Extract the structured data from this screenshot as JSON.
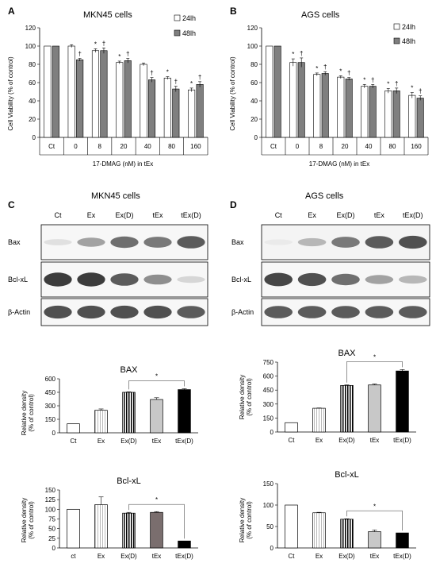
{
  "panels": {
    "A": {
      "label": "A",
      "title": "MKN45 cells"
    },
    "B": {
      "label": "B",
      "title": "AGS cells"
    },
    "C": {
      "label": "C",
      "title": "MKN45 cells"
    },
    "D": {
      "label": "D",
      "title": "AGS cells"
    }
  },
  "viability_legend": [
    "24lh",
    "48lh"
  ],
  "viability_legend_b": [
    "24lh",
    "48lh"
  ],
  "viability_ylabel": "Cell Viability (% of control)",
  "viability_xlabel": "17-DMAG (nM) in tEx",
  "blot_lanes": [
    "Ct",
    "Ex",
    "Ex(D)",
    "tEx",
    "tEx(D)"
  ],
  "blot_rows": [
    "Bax",
    "Bcl-xL",
    "β-Actin"
  ],
  "density_ylabel_1": "Relative density",
  "density_ylabel_2": "(% of control)",
  "colors": {
    "gray24": "#ffffff",
    "gray48": "#7f7f7f",
    "tEx_light": "#c8c8c8",
    "tEx_dark": "#7a6e6e",
    "black": "#000000"
  },
  "chart_data": [
    {
      "id": "A",
      "type": "bar",
      "title": "MKN45 cells",
      "categories": [
        "Ct",
        "0",
        "8",
        "20",
        "40",
        "80",
        "160"
      ],
      "xlabel": "17-DMAG (nM) in tEx",
      "ylabel": "Cell Viability (% of control)",
      "ylim": [
        0,
        120
      ],
      "yticks": [
        0,
        20,
        40,
        60,
        80,
        100,
        120
      ],
      "series": [
        {
          "name": "24lh",
          "values": [
            100,
            100,
            95,
            82,
            80,
            65,
            52
          ],
          "errors": [
            0,
            1.5,
            2,
            1.5,
            1.5,
            1.5,
            2
          ]
        },
        {
          "name": "48lh",
          "values": [
            100,
            85,
            95,
            84,
            63,
            53,
            58
          ],
          "errors": [
            0,
            1.5,
            3,
            2.5,
            2.5,
            3,
            3
          ]
        }
      ],
      "annotations": [
        {
          "category": "0",
          "series": 1,
          "text": "†"
        },
        {
          "category": "8",
          "series": 0,
          "text": "*"
        },
        {
          "category": "8",
          "series": 1,
          "text": "†"
        },
        {
          "category": "20",
          "series": 0,
          "text": "*"
        },
        {
          "category": "20",
          "series": 1,
          "text": "†"
        },
        {
          "category": "40",
          "series": 1,
          "text": "†"
        },
        {
          "category": "80",
          "series": 0,
          "text": "*"
        },
        {
          "category": "80",
          "series": 1,
          "text": "†"
        },
        {
          "category": "160",
          "series": 0,
          "text": "*"
        },
        {
          "category": "160",
          "series": 1,
          "text": "†"
        }
      ]
    },
    {
      "id": "B",
      "type": "bar",
      "title": "AGS cells",
      "categories": [
        "Ct",
        "0",
        "8",
        "20",
        "40",
        "80",
        "160"
      ],
      "xlabel": "17-DMAG (nM) in tEx",
      "ylabel": "Cell Viability (% of control)",
      "ylim": [
        0,
        120
      ],
      "yticks": [
        0,
        20,
        40,
        60,
        80,
        100,
        120
      ],
      "series": [
        {
          "name": "24lh",
          "values": [
            100,
            82,
            69,
            66,
            56,
            51,
            46
          ],
          "errors": [
            0,
            4,
            1.5,
            1.5,
            2,
            2.5,
            3
          ]
        },
        {
          "name": "48lh",
          "values": [
            100,
            82,
            70,
            64,
            56,
            51,
            43
          ],
          "errors": [
            0,
            5,
            2,
            1.5,
            2,
            3,
            2.5
          ]
        }
      ],
      "annotations": [
        {
          "category": "0",
          "series": 0,
          "text": "*"
        },
        {
          "category": "0",
          "series": 1,
          "text": "†"
        },
        {
          "category": "8",
          "series": 0,
          "text": "*"
        },
        {
          "category": "8",
          "series": 1,
          "text": "†"
        },
        {
          "category": "20",
          "series": 0,
          "text": "*"
        },
        {
          "category": "20",
          "series": 1,
          "text": "†"
        },
        {
          "category": "40",
          "series": 0,
          "text": "*"
        },
        {
          "category": "40",
          "series": 1,
          "text": "†"
        },
        {
          "category": "80",
          "series": 0,
          "text": "*"
        },
        {
          "category": "80",
          "series": 1,
          "text": "†"
        },
        {
          "category": "160",
          "series": 0,
          "text": "*"
        },
        {
          "category": "160",
          "series": 1,
          "text": "†"
        }
      ]
    },
    {
      "id": "C-BAX",
      "type": "bar",
      "title": "BAX",
      "categories": [
        "Ct",
        "Ex",
        "Ex(D)",
        "tEx",
        "tEx(D)"
      ],
      "ylabel": "Relative density (% of control)",
      "ylim": [
        0,
        600
      ],
      "yticks": [
        0,
        150,
        300,
        450,
        600
      ],
      "values": [
        100,
        250,
        450,
        370,
        480
      ],
      "errors": [
        0,
        15,
        5,
        20,
        10
      ],
      "significance": {
        "from": "Ex(D)",
        "to": "tEx(D)",
        "text": "*"
      }
    },
    {
      "id": "C-Bcl-xL",
      "type": "bar",
      "title": "Bcl-xL",
      "categories": [
        "ct",
        "Ex",
        "Ex(D)",
        "tEx",
        "tEx(D)"
      ],
      "ylabel": "Relative density (% of control)",
      "ylim": [
        0,
        150
      ],
      "yticks": [
        0,
        25,
        50,
        75,
        100,
        125,
        150
      ],
      "values": [
        100,
        112,
        90,
        92,
        18
      ],
      "errors": [
        0,
        20,
        2,
        2,
        0
      ],
      "significance": {
        "from": "Ex(D)",
        "to": "tEx(D)",
        "text": "*"
      }
    },
    {
      "id": "D-BAX",
      "type": "bar",
      "title": "BAX",
      "categories": [
        "Ct",
        "Ex",
        "Ex(D)",
        "tEx",
        "tEx(D)"
      ],
      "ylabel": "Relative density (% of control)",
      "ylim": [
        0,
        750
      ],
      "yticks": [
        0,
        150,
        300,
        450,
        600,
        750
      ],
      "values": [
        100,
        255,
        500,
        505,
        655
      ],
      "errors": [
        0,
        3,
        5,
        10,
        15
      ],
      "significance": {
        "from": "Ex(D)",
        "to": "tEx(D)",
        "text": "*"
      }
    },
    {
      "id": "D-Bcl-xL",
      "type": "bar",
      "title": "Bcl-xL",
      "categories": [
        "Ct",
        "Ex",
        "Ex(D)",
        "tEx",
        "tEx(D)"
      ],
      "ylabel": "Relative density (% of control)",
      "ylim": [
        0,
        150
      ],
      "yticks": [
        0,
        50,
        100,
        150
      ],
      "values": [
        100,
        82,
        67,
        38,
        35
      ],
      "errors": [
        0,
        1,
        1,
        4,
        0
      ],
      "significance": {
        "from": "Ex(D)",
        "to": "tEx(D)",
        "text": "*"
      }
    }
  ],
  "blots": {
    "C": {
      "Bax": [
        0.15,
        0.45,
        0.7,
        0.65,
        0.8
      ],
      "Bcl-xL": [
        0.95,
        0.95,
        0.8,
        0.55,
        0.2
      ],
      "β-Actin": [
        0.85,
        0.85,
        0.85,
        0.85,
        0.8
      ]
    },
    "D": {
      "Bax": [
        0.1,
        0.35,
        0.65,
        0.8,
        0.85
      ],
      "Bcl-xL": [
        0.9,
        0.85,
        0.7,
        0.45,
        0.35
      ],
      "β-Actin": [
        0.8,
        0.8,
        0.8,
        0.8,
        0.8
      ]
    }
  }
}
